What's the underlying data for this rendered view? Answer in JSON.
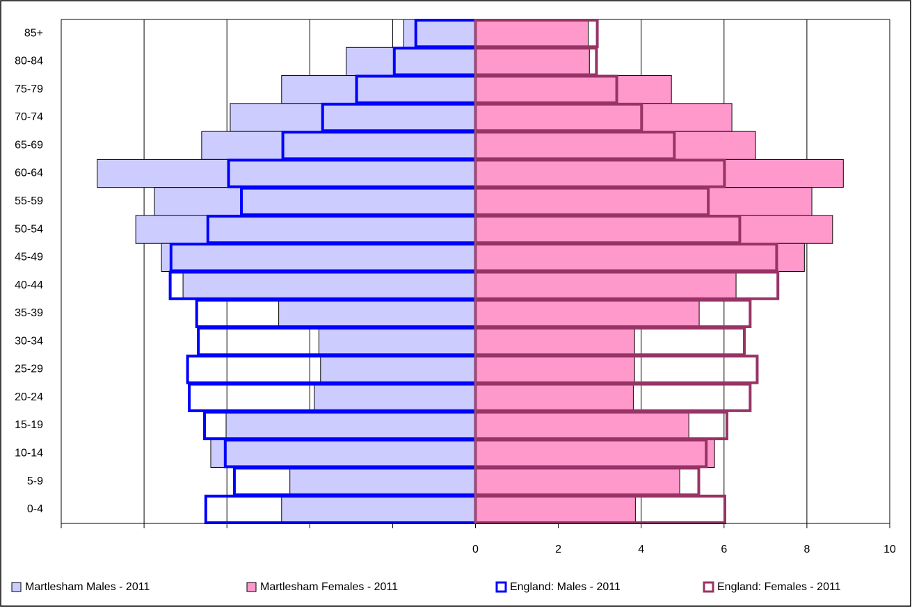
{
  "chart_data": {
    "type": "pyramid",
    "categories": [
      "85+",
      "80-84",
      "75-79",
      "70-74",
      "65-69",
      "60-64",
      "55-59",
      "50-54",
      "45-49",
      "40-44",
      "35-39",
      "30-34",
      "25-29",
      "20-24",
      "15-19",
      "10-14",
      "5-9",
      "0-4"
    ],
    "series": [
      {
        "name": "Martlesham Males - 2011",
        "color": "#ccccff",
        "side": "left",
        "style": "filled",
        "values": [
          1.73,
          3.12,
          4.68,
          5.92,
          6.61,
          9.13,
          7.75,
          8.2,
          7.58,
          7.06,
          4.75,
          3.78,
          3.74,
          3.89,
          6.02,
          6.39,
          4.48,
          4.68
        ]
      },
      {
        "name": "Martlesham Females - 2011",
        "color": "#ff99cc",
        "side": "right",
        "style": "filled",
        "values": [
          2.72,
          2.75,
          4.73,
          6.19,
          6.76,
          8.88,
          8.12,
          8.62,
          7.94,
          6.29,
          5.4,
          3.84,
          3.84,
          3.81,
          5.15,
          5.77,
          4.93,
          3.86
        ]
      },
      {
        "name": "England:  Males - 2011",
        "color": "#0000ff",
        "side": "left",
        "style": "outline",
        "values": [
          1.44,
          1.96,
          2.87,
          3.69,
          4.65,
          5.96,
          5.65,
          6.46,
          7.35,
          7.37,
          6.73,
          6.69,
          6.95,
          6.91,
          6.54,
          6.04,
          5.82,
          6.51
        ]
      },
      {
        "name": "England:  Females - 2011",
        "color": "#993366",
        "side": "right",
        "style": "outline",
        "values": [
          2.94,
          2.92,
          3.41,
          4.01,
          4.8,
          6.01,
          5.62,
          6.38,
          7.27,
          7.3,
          6.63,
          6.49,
          6.8,
          6.63,
          6.07,
          5.57,
          5.39,
          6.02
        ]
      }
    ],
    "xlim": [
      -10,
      10
    ],
    "xticks": [
      0,
      2,
      4,
      6,
      8,
      10
    ],
    "grid": true,
    "legend": "bottom"
  }
}
